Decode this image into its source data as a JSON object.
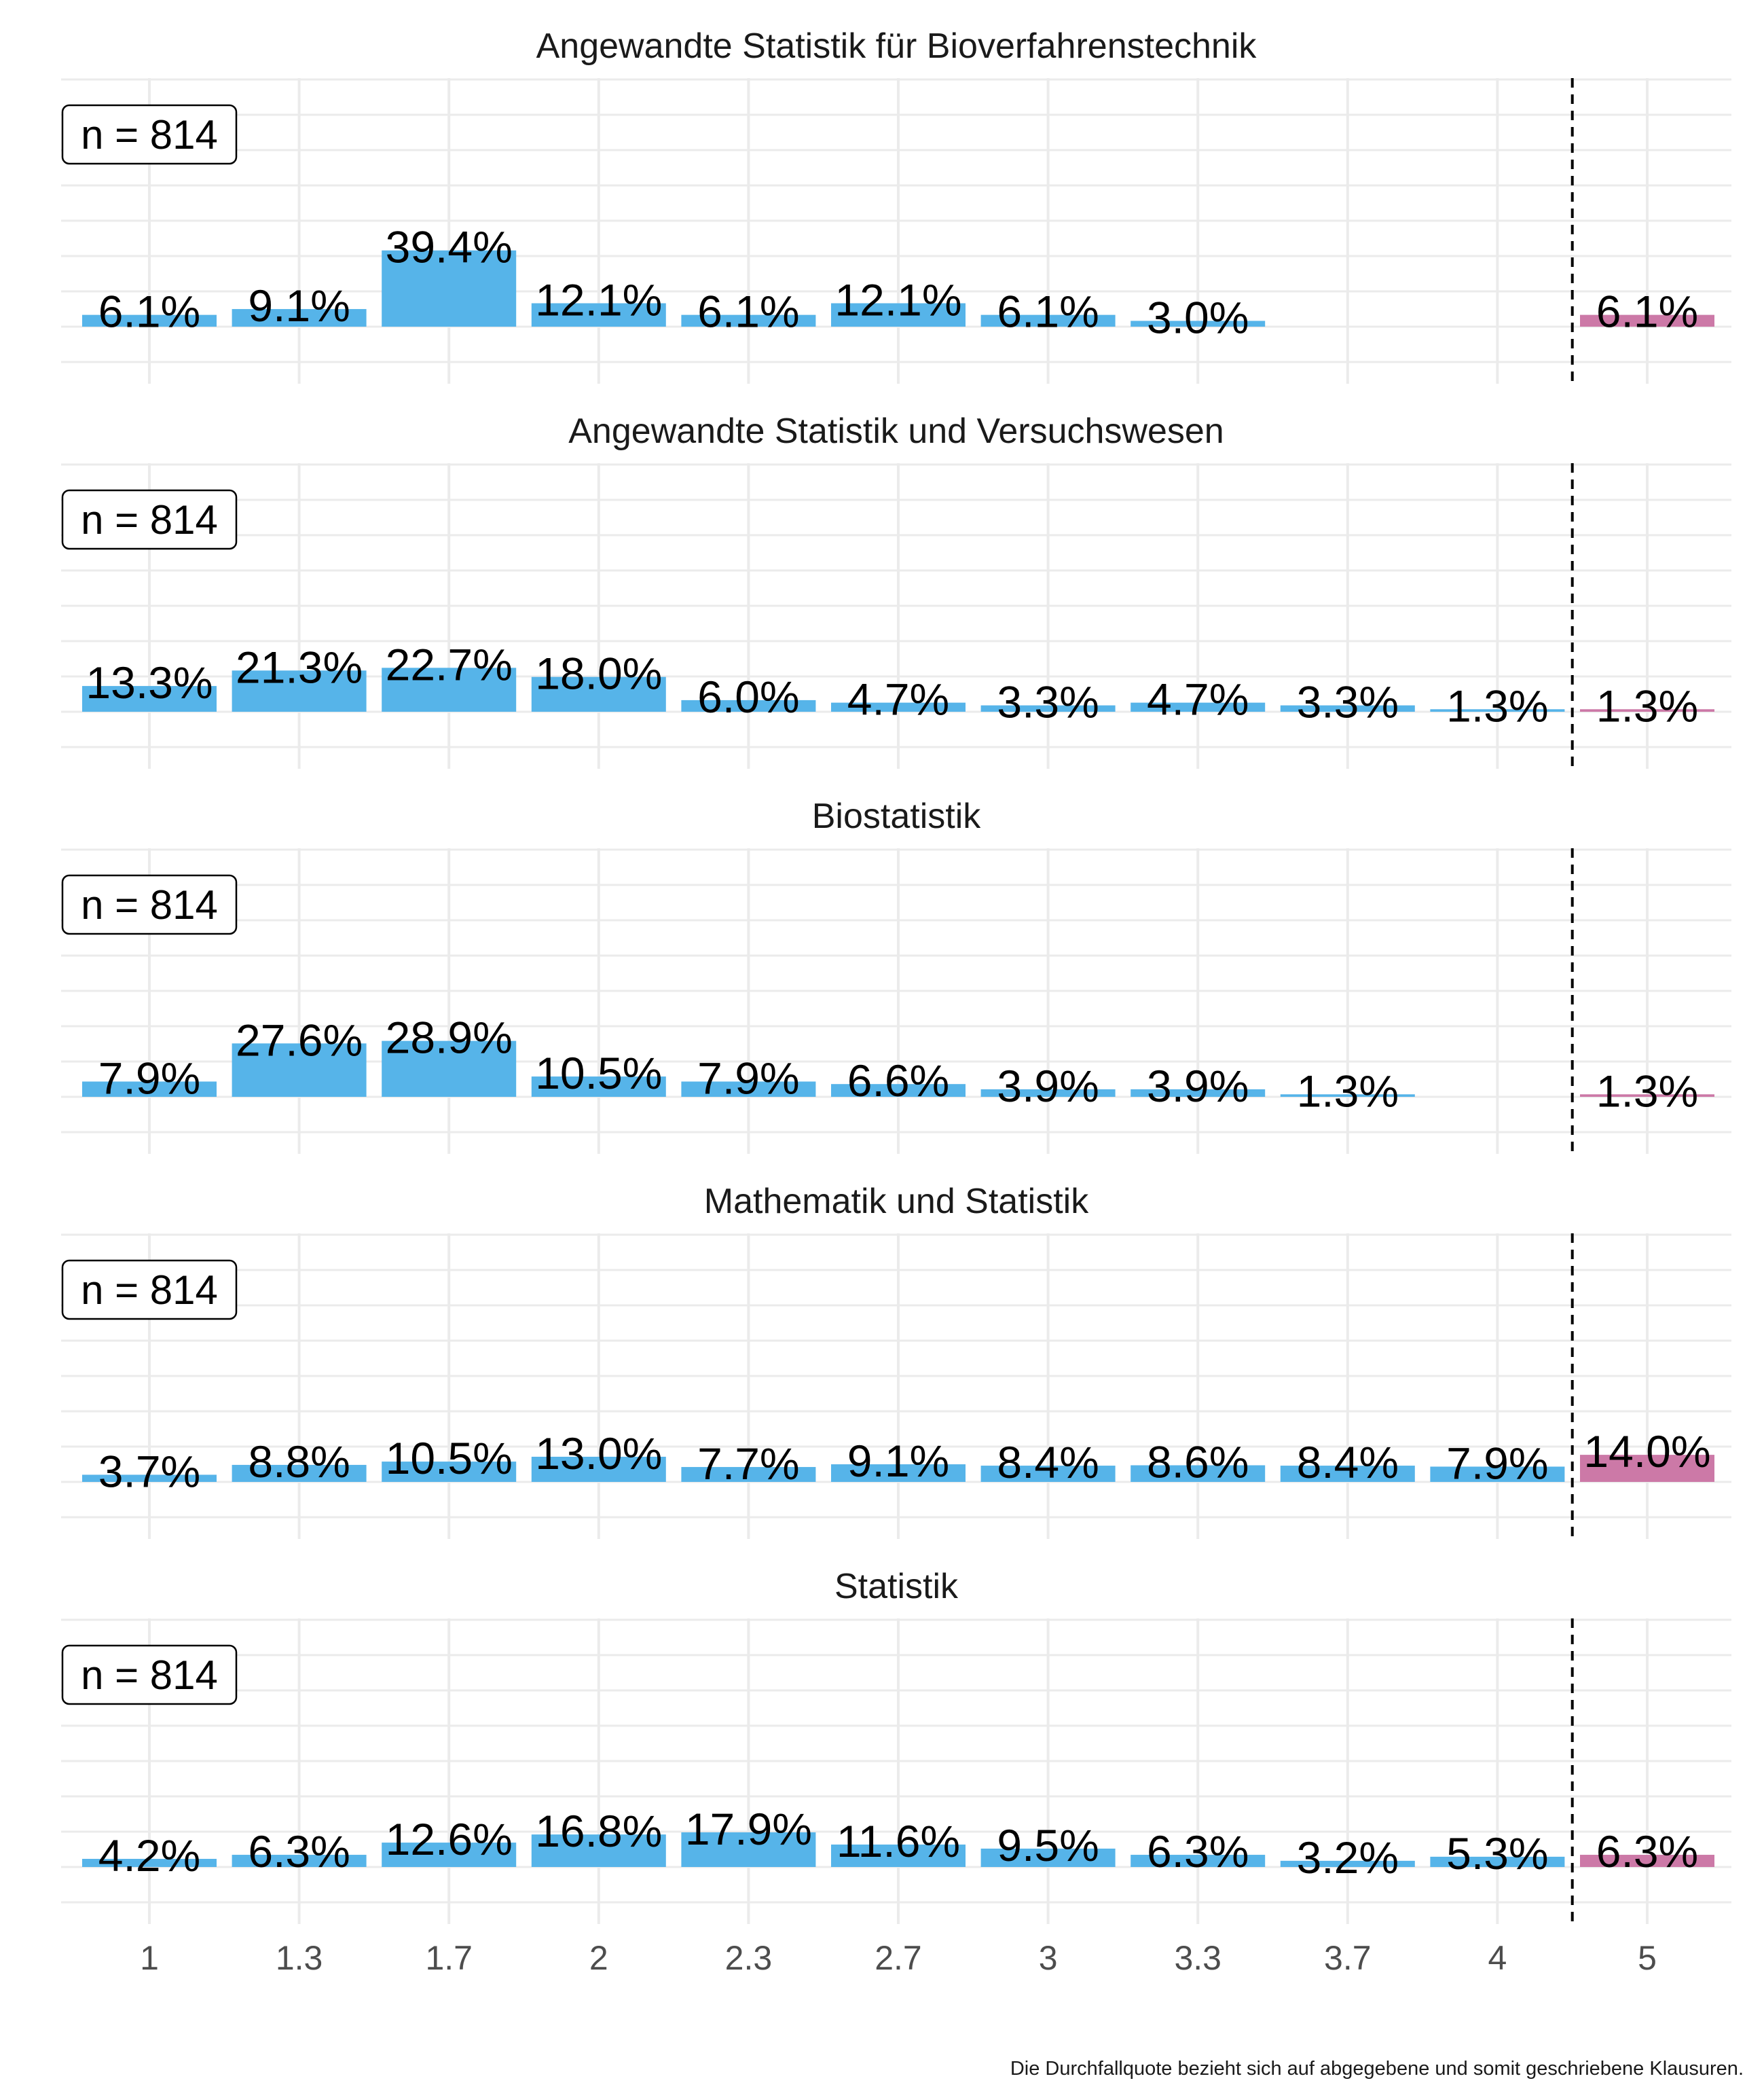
{
  "caption": "Die Durchfallquote bezieht sich auf abgegebene und somit geschriebene Klausuren.",
  "chart_data": {
    "type": "bar",
    "categories": [
      "1",
      "1.3",
      "1.7",
      "2",
      "2.3",
      "2.7",
      "3",
      "3.3",
      "3.7",
      "4",
      "5"
    ],
    "failing_category": "5",
    "colors": {
      "pass": "#56B4E9",
      "fail": "#CC79A7"
    },
    "ylim": [
      0,
      100
    ],
    "grid": true,
    "facets": [
      {
        "title": "Angewandte Statistik für Bioverfahrenstechnik",
        "n_label": "n = 814",
        "values": [
          6.1,
          9.1,
          39.4,
          12.1,
          6.1,
          12.1,
          6.1,
          3.0,
          null,
          null,
          6.1
        ],
        "labels": [
          "6.1%",
          "9.1%",
          "39.4%",
          "12.1%",
          "6.1%",
          "12.1%",
          "6.1%",
          "3.0%",
          "",
          "",
          "6.1%"
        ]
      },
      {
        "title": "Angewandte Statistik und Versuchswesen",
        "n_label": "n = 814",
        "values": [
          13.3,
          21.3,
          22.7,
          18.0,
          6.0,
          4.7,
          3.3,
          4.7,
          3.3,
          1.3,
          1.3
        ],
        "labels": [
          "13.3%",
          "21.3%",
          "22.7%",
          "18.0%",
          "6.0%",
          "4.7%",
          "3.3%",
          "4.7%",
          "3.3%",
          "1.3%",
          "1.3%"
        ]
      },
      {
        "title": "Biostatistik",
        "n_label": "n = 814",
        "values": [
          7.9,
          27.6,
          28.9,
          10.5,
          7.9,
          6.6,
          3.9,
          3.9,
          1.3,
          null,
          1.3
        ],
        "labels": [
          "7.9%",
          "27.6%",
          "28.9%",
          "10.5%",
          "7.9%",
          "6.6%",
          "3.9%",
          "3.9%",
          "1.3%",
          "",
          "1.3%"
        ]
      },
      {
        "title": "Mathematik und Statistik",
        "n_label": "n = 814",
        "values": [
          3.7,
          8.8,
          10.5,
          13.0,
          7.7,
          9.1,
          8.4,
          8.6,
          8.4,
          7.9,
          14.0
        ],
        "labels": [
          "3.7%",
          "8.8%",
          "10.5%",
          "13.0%",
          "7.7%",
          "9.1%",
          "8.4%",
          "8.6%",
          "8.4%",
          "7.9%",
          "14.0%"
        ]
      },
      {
        "title": "Statistik",
        "n_label": "n = 814",
        "values": [
          4.2,
          6.3,
          12.6,
          16.8,
          17.9,
          11.6,
          9.5,
          6.3,
          3.2,
          5.3,
          6.3
        ],
        "labels": [
          "4.2%",
          "6.3%",
          "12.6%",
          "16.8%",
          "17.9%",
          "11.6%",
          "9.5%",
          "6.3%",
          "3.2%",
          "5.3%",
          "6.3%"
        ]
      }
    ]
  }
}
